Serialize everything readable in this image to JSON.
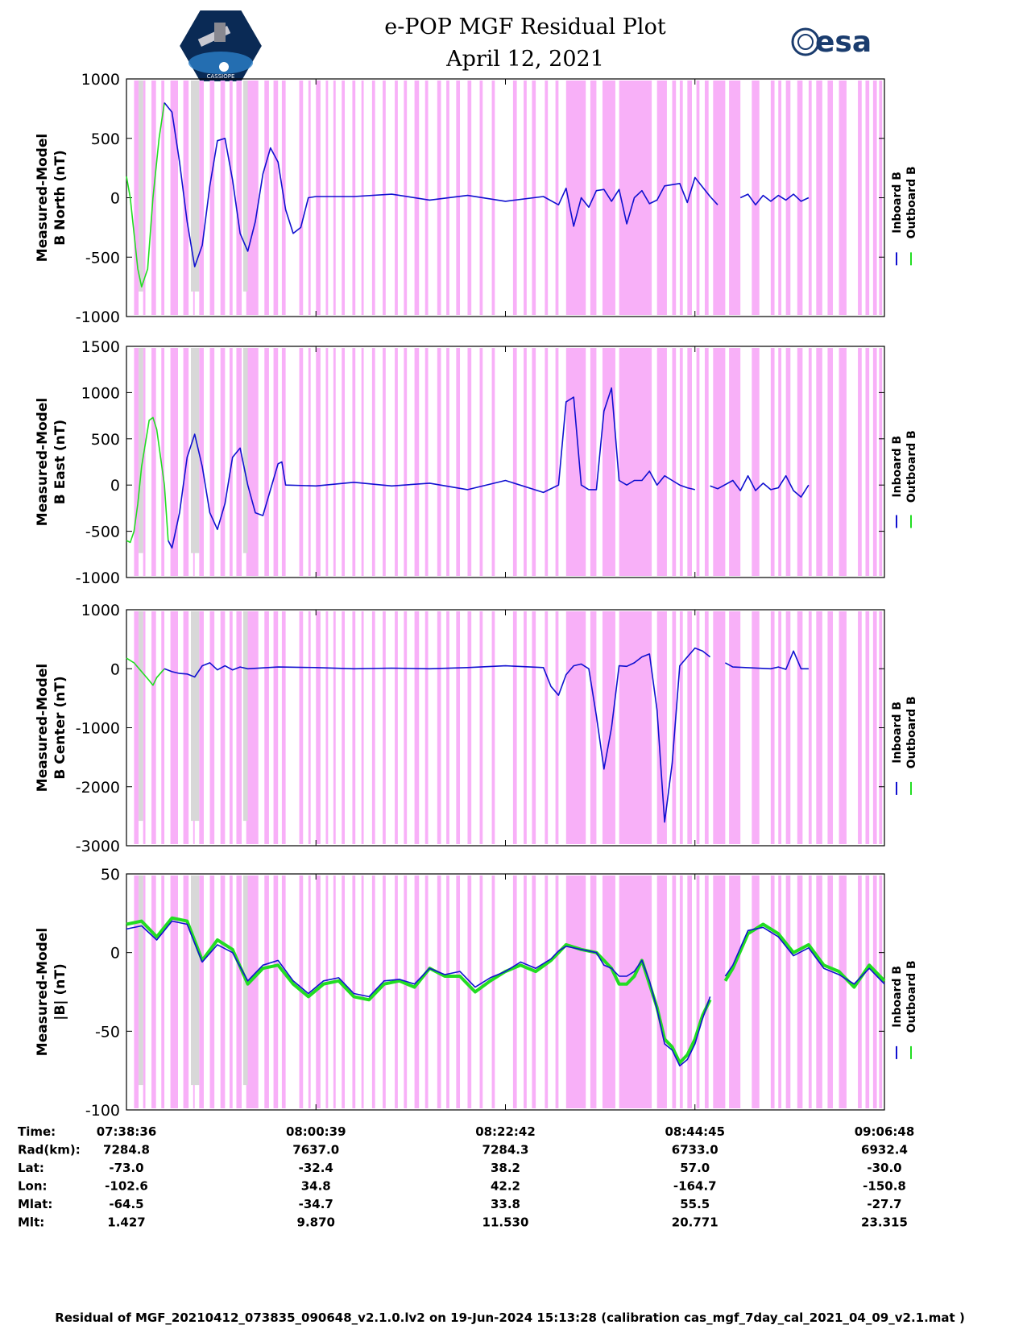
{
  "title": {
    "line1": "e-POP MGF Residual Plot",
    "line2": "April 12, 2021"
  },
  "logos": {
    "left_text": "CASSIOPE",
    "right_text": "esa"
  },
  "colors": {
    "inboard": "#1010d0",
    "outboard": "#22dd22",
    "shade_pink": "#f8b0f8",
    "shade_gray": "#d8d8d8",
    "axis": "#000000"
  },
  "legend": {
    "inboard": "Inboard B",
    "outboard": "Outboard B"
  },
  "chart_data": [
    {
      "type": "line",
      "ylabel_line1": "Measured-Model",
      "ylabel_line2": "B North (nT)",
      "ylim": [
        -1000,
        1000
      ],
      "yticks": [
        "-1000",
        "-500",
        "0",
        "500",
        "1000"
      ],
      "xlim_min": [
        0,
        90
      ],
      "series": [
        {
          "name": "Outboard B",
          "x": [
            0,
            0.5,
            1,
            1.5,
            2,
            2.8,
            3.5,
            4.3,
            5
          ],
          "y": [
            180,
            0,
            -300,
            -600,
            -750,
            -600,
            0,
            500,
            800
          ]
        },
        {
          "name": "Inboard B",
          "x": [
            5,
            6,
            7,
            8,
            9,
            10,
            11,
            12,
            13,
            14,
            15,
            16,
            17,
            18,
            19,
            20,
            21,
            22,
            23,
            24,
            25,
            30,
            35,
            40,
            45,
            50,
            55,
            57,
            58,
            59,
            60,
            61,
            62,
            63,
            64,
            65,
            66,
            67,
            68,
            69,
            70,
            71,
            72,
            73,
            74,
            75,
            76,
            77,
            78,
            80,
            81,
            82,
            83,
            84,
            85,
            86,
            87,
            88,
            89,
            90
          ],
          "y": [
            800,
            720,
            300,
            -200,
            -580,
            -400,
            100,
            480,
            500,
            150,
            -300,
            -450,
            -200,
            200,
            420,
            300,
            -100,
            -300,
            -250,
            0,
            10,
            10,
            30,
            -20,
            20,
            -30,
            10,
            -60,
            80,
            -240,
            0,
            -80,
            60,
            70,
            -30,
            70,
            -220,
            0,
            60,
            -50,
            -20,
            100,
            110,
            120,
            -40,
            170,
            90,
            10,
            -60,
            null,
            0,
            30,
            -60,
            20,
            -30,
            20,
            -20,
            30,
            -30,
            0
          ]
        }
      ]
    },
    {
      "type": "line",
      "ylabel_line1": "Measured-Model",
      "ylabel_line2": "B East (nT)",
      "ylim": [
        -1000,
        1500
      ],
      "yticks": [
        "-1000",
        "-500",
        "0",
        "500",
        "1000",
        "1500"
      ],
      "series": [
        {
          "name": "Outboard B",
          "x": [
            0,
            0.5,
            1,
            1.5,
            2,
            3,
            3.5,
            4,
            5,
            5.5
          ],
          "y": [
            -600,
            -620,
            -500,
            -200,
            200,
            700,
            730,
            600,
            0,
            -600
          ]
        },
        {
          "name": "Inboard B",
          "x": [
            5.5,
            6,
            7,
            8,
            9,
            10,
            11,
            12,
            13,
            14,
            15,
            16,
            17,
            18,
            19,
            20,
            20.5,
            21,
            25,
            30,
            35,
            40,
            45,
            50,
            55,
            57,
            58,
            59,
            60,
            61,
            62,
            63,
            64,
            65,
            66,
            67,
            68,
            69,
            70,
            71,
            72,
            73,
            74,
            75,
            76,
            77,
            78,
            80,
            81,
            82,
            83,
            84,
            85,
            86,
            87,
            88,
            89,
            90
          ],
          "y": [
            -600,
            -680,
            -300,
            300,
            550,
            200,
            -300,
            -480,
            -200,
            300,
            400,
            0,
            -300,
            -330,
            -50,
            230,
            250,
            0,
            -10,
            30,
            -10,
            20,
            -50,
            50,
            -80,
            0,
            900,
            950,
            0,
            -50,
            -50,
            800,
            1050,
            50,
            0,
            50,
            50,
            150,
            0,
            100,
            50,
            0,
            -30,
            -50,
            null,
            -10,
            -40,
            50,
            -60,
            100,
            -60,
            20,
            -50,
            -30,
            100,
            -60,
            -130,
            0
          ]
        }
      ]
    },
    {
      "type": "line",
      "ylabel_line1": "Measured-Model",
      "ylabel_line2": "B Center (nT)",
      "ylim": [
        -3000,
        1000
      ],
      "yticks": [
        "-3000",
        "-2000",
        "-1000",
        "0",
        "1000"
      ],
      "series": [
        {
          "name": "Outboard B",
          "x": [
            0,
            1,
            2,
            3,
            3.5,
            4,
            5
          ],
          "y": [
            180,
            100,
            -50,
            -200,
            -280,
            -150,
            0
          ]
        },
        {
          "name": "Inboard B",
          "x": [
            5,
            6,
            7,
            8,
            9,
            10,
            11,
            12,
            13,
            14,
            15,
            16,
            20,
            25,
            30,
            35,
            40,
            45,
            50,
            55,
            56,
            57,
            58,
            59,
            60,
            61,
            62,
            63,
            64,
            65,
            66,
            67,
            68,
            69,
            70,
            71,
            72,
            73,
            74,
            75,
            76,
            77,
            78,
            79,
            80,
            85,
            86,
            87,
            88,
            89,
            90
          ],
          "y": [
            0,
            -50,
            -80,
            -90,
            -140,
            50,
            100,
            -20,
            50,
            -20,
            30,
            0,
            30,
            20,
            0,
            10,
            0,
            20,
            50,
            20,
            -300,
            -450,
            -100,
            50,
            80,
            0,
            -800,
            -1700,
            -1000,
            50,
            40,
            100,
            200,
            250,
            -700,
            -2600,
            -1600,
            50,
            200,
            350,
            300,
            200,
            null,
            100,
            30,
            0,
            30,
            -10,
            300,
            0,
            0
          ]
        }
      ]
    },
    {
      "type": "line",
      "ylabel_line1": "Measured-Model",
      "ylabel_line2": "|B| (nT)",
      "ylim": [
        -100,
        50
      ],
      "yticks": [
        "-100",
        "-50",
        "0",
        "50"
      ],
      "series": [
        {
          "name": "Outboard B",
          "x": [
            0,
            2,
            4,
            6,
            8,
            10,
            12,
            14,
            16,
            18,
            20,
            22,
            24,
            26,
            28,
            30,
            32,
            34,
            36,
            38,
            40,
            42,
            44,
            46,
            48,
            50,
            52,
            54,
            56,
            57,
            58,
            60,
            62,
            63,
            64,
            65,
            66,
            67,
            68,
            69,
            70,
            71,
            72,
            73,
            74,
            75,
            76,
            77,
            78,
            79,
            80,
            82,
            84,
            86,
            88,
            90,
            92,
            94,
            96,
            98,
            100
          ],
          "y": [
            18,
            20,
            10,
            22,
            20,
            -5,
            8,
            2,
            -20,
            -10,
            -8,
            -20,
            -28,
            -20,
            -18,
            -28,
            -30,
            -20,
            -18,
            -22,
            -10,
            -15,
            -15,
            -25,
            -18,
            -12,
            -8,
            -12,
            -5,
            0,
            5,
            2,
            0,
            -5,
            -10,
            -20,
            -20,
            -15,
            -5,
            -20,
            -35,
            -55,
            -60,
            -70,
            -65,
            -55,
            -40,
            -30,
            null,
            -18,
            -10,
            12,
            18,
            12,
            0,
            5,
            -8,
            -12,
            -22,
            -8,
            -18
          ]
        },
        {
          "name": "Inboard B",
          "x": [
            0,
            2,
            4,
            6,
            8,
            10,
            12,
            14,
            16,
            18,
            20,
            22,
            24,
            26,
            28,
            30,
            32,
            34,
            36,
            38,
            40,
            42,
            44,
            46,
            48,
            50,
            52,
            54,
            56,
            57,
            58,
            60,
            62,
            63,
            64,
            65,
            66,
            67,
            68,
            69,
            70,
            71,
            72,
            73,
            74,
            75,
            76,
            77,
            78,
            79,
            80,
            82,
            84,
            86,
            88,
            90,
            92,
            94,
            96,
            98,
            100
          ],
          "y": [
            15,
            17,
            8,
            20,
            18,
            -6,
            5,
            0,
            -18,
            -8,
            -5,
            -18,
            -26,
            -18,
            -16,
            -26,
            -28,
            -18,
            -17,
            -20,
            -10,
            -14,
            -12,
            -22,
            -16,
            -12,
            -6,
            -10,
            -4,
            1,
            4,
            2,
            0,
            -8,
            -10,
            -15,
            -15,
            -12,
            -5,
            -18,
            -36,
            -58,
            -62,
            -72,
            -68,
            -58,
            -42,
            -28,
            null,
            -15,
            -8,
            14,
            16,
            10,
            -2,
            3,
            -10,
            -14,
            -20,
            -10,
            -20
          ]
        }
      ]
    }
  ],
  "xaxis": {
    "row_labels": [
      "Time:",
      "Rad(km):",
      "Lat:",
      "Lon:",
      "Mlat:",
      "Mlt:"
    ],
    "columns": [
      {
        "values": [
          "07:38:36",
          "7284.8",
          "-73.0",
          "-102.6",
          "-64.5",
          "1.427"
        ]
      },
      {
        "values": [
          "08:00:39",
          "7637.0",
          "-32.4",
          "34.8",
          "-34.7",
          "9.870"
        ]
      },
      {
        "values": [
          "08:22:42",
          "7284.3",
          "38.2",
          "42.2",
          "33.8",
          "11.530"
        ]
      },
      {
        "values": [
          "08:44:45",
          "6733.0",
          "57.0",
          "-164.7",
          "55.5",
          "20.771"
        ]
      },
      {
        "values": [
          "09:06:48",
          "6932.4",
          "-30.0",
          "-150.8",
          "-27.7",
          "23.315"
        ]
      }
    ]
  },
  "footer": "Residual of MGF_20210412_073835_090648_v2.1.0.lv2 on 19-Jun-2024 15:13:28 (calibration cas_mgf_7day_cal_2021_04_09_v2.1.mat )"
}
